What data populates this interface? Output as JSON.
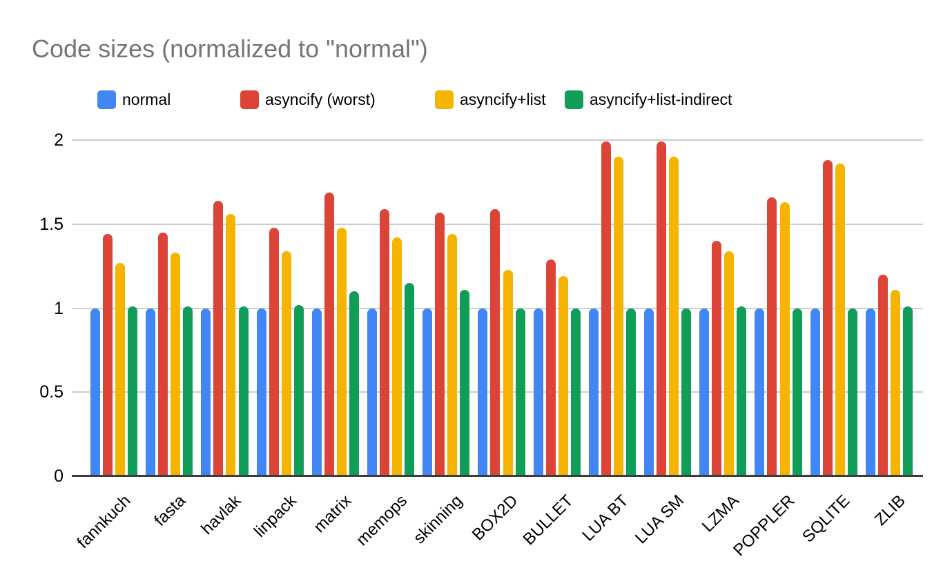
{
  "chart_data": {
    "type": "bar",
    "title": "Code sizes (normalized to \"normal\")",
    "categories": [
      "fannkuch",
      "fasta",
      "havlak",
      "linpack",
      "matrix",
      "memops",
      "skinning",
      "BOX2D",
      "BULLET",
      "LUA BT",
      "LUA SM",
      "LZMA",
      "POPPLER",
      "SQLITE",
      "ZLIB"
    ],
    "series": [
      {
        "name": "normal",
        "color": "#4285F4",
        "values": [
          1.0,
          1.0,
          1.0,
          1.0,
          1.0,
          1.0,
          1.0,
          1.0,
          1.0,
          1.0,
          1.0,
          1.0,
          1.0,
          1.0,
          1.0
        ]
      },
      {
        "name": "asyncify (worst)",
        "color": "#DB4437",
        "values": [
          1.44,
          1.45,
          1.64,
          1.48,
          1.69,
          1.59,
          1.57,
          1.59,
          1.29,
          1.99,
          1.99,
          1.4,
          1.66,
          1.88,
          1.2
        ]
      },
      {
        "name": "asyncify+list",
        "color": "#F4B400",
        "values": [
          1.27,
          1.33,
          1.56,
          1.34,
          1.48,
          1.42,
          1.44,
          1.23,
          1.19,
          1.9,
          1.9,
          1.34,
          1.63,
          1.86,
          1.11
        ]
      },
      {
        "name": "asyncify+list-indirect",
        "color": "#0F9D58",
        "values": [
          1.01,
          1.01,
          1.01,
          1.02,
          1.1,
          1.15,
          1.11,
          1.0,
          1.0,
          1.0,
          1.0,
          1.01,
          1.0,
          1.0,
          1.01
        ]
      }
    ],
    "xlabel": "",
    "ylabel": "",
    "ylim": [
      0,
      2
    ],
    "yticks": [
      0,
      0.5,
      1,
      1.5,
      2
    ],
    "grid": true,
    "legend_position": "top"
  }
}
